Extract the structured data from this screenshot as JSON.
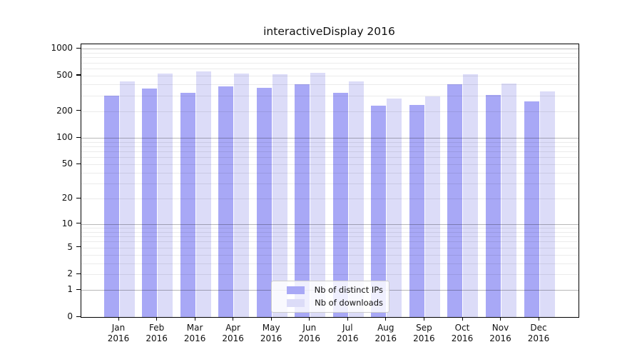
{
  "title": "interactiveDisplay 2016",
  "colors": {
    "ips_bar": "#a8a8f6",
    "downloads_bar": "#dcdcf8",
    "grid_major": "rgba(0,0,0,0.28)",
    "grid_minor": "rgba(0,0,0,0.08)",
    "axis": "#000000",
    "legend_border": "#cccccc",
    "legend_background": "rgba(255,255,255,0.82)"
  },
  "y_axis": {
    "tick_labels": [
      "0",
      "1",
      "2",
      "5",
      "10",
      "20",
      "50",
      "100",
      "200",
      "500",
      "1000"
    ],
    "tick_values": [
      0,
      1,
      2,
      5,
      10,
      20,
      50,
      100,
      200,
      500,
      1000
    ]
  },
  "chart_data": {
    "type": "bar",
    "title": "interactiveDisplay 2016",
    "categories": [
      "Jan 2016",
      "Feb 2016",
      "Mar 2016",
      "Apr 2016",
      "May 2016",
      "Jun 2016",
      "Jul 2016",
      "Aug 2016",
      "Sep 2016",
      "Oct 2016",
      "Nov 2016",
      "Dec 2016"
    ],
    "series": [
      {
        "name": "Nb of distinct IPs",
        "color_key": "ips_bar",
        "values": [
          300,
          360,
          320,
          380,
          365,
          400,
          318,
          231,
          233,
          400,
          303,
          258
        ]
      },
      {
        "name": "Nb of downloads",
        "color_key": "downloads_bar",
        "values": [
          428,
          528,
          562,
          530,
          520,
          540,
          430,
          277,
          295,
          520,
          408,
          334
        ]
      }
    ],
    "yscale": "log1p",
    "yticks": [
      0,
      1,
      2,
      5,
      10,
      20,
      50,
      100,
      200,
      500,
      1000
    ],
    "ylim": [
      0,
      1121
    ],
    "xlabel": "",
    "ylabel": "",
    "grid": "horizontal (minor 2-9 per decade, major at decades)",
    "legend_position": "lower center"
  }
}
